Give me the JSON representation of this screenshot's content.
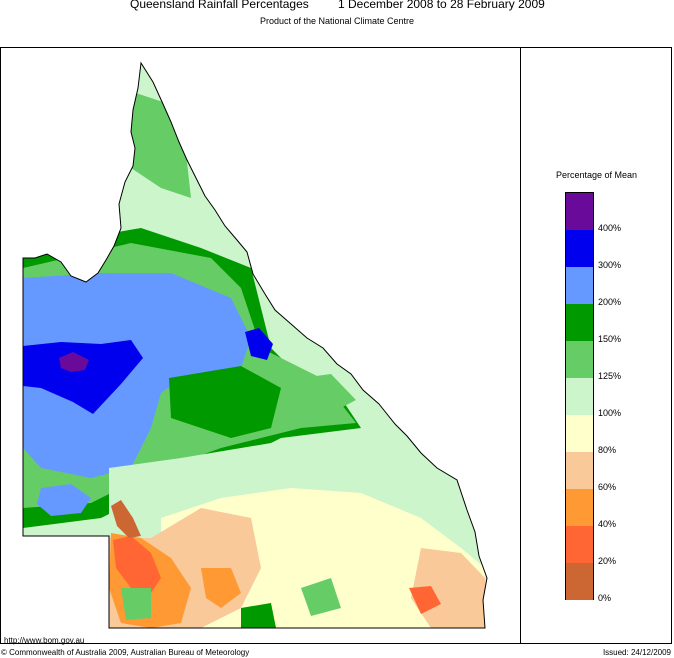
{
  "header": {
    "title": "Queensland Rainfall Percentages",
    "period": "1 December 2008 to 28 February 2009",
    "subtitle": "Product of the National Climate Centre"
  },
  "legend": {
    "title": "Percentage of Mean",
    "levels": [
      {
        "label": "400%",
        "color": "#6a0a9a"
      },
      {
        "label": "300%",
        "color": "#0000ee"
      },
      {
        "label": "200%",
        "color": "#6699ff"
      },
      {
        "label": "150%",
        "color": "#009900"
      },
      {
        "label": "125%",
        "color": "#66cc66"
      },
      {
        "label": "100%",
        "color": "#ccf5cc"
      },
      {
        "label": "80%",
        "color": "#ffffcc"
      },
      {
        "label": "60%",
        "color": "#f9c99a"
      },
      {
        "label": "40%",
        "color": "#ff9933"
      },
      {
        "label": "20%",
        "color": "#ff6633"
      },
      {
        "label": "0%",
        "color": "#cc6633"
      }
    ]
  },
  "footer": {
    "url": "http://www.bom.gov.au",
    "copyright": "© Commonwealth of Australia 2009, Australian Bureau of Meteorology",
    "issued": "Issued: 24/12/2009"
  }
}
